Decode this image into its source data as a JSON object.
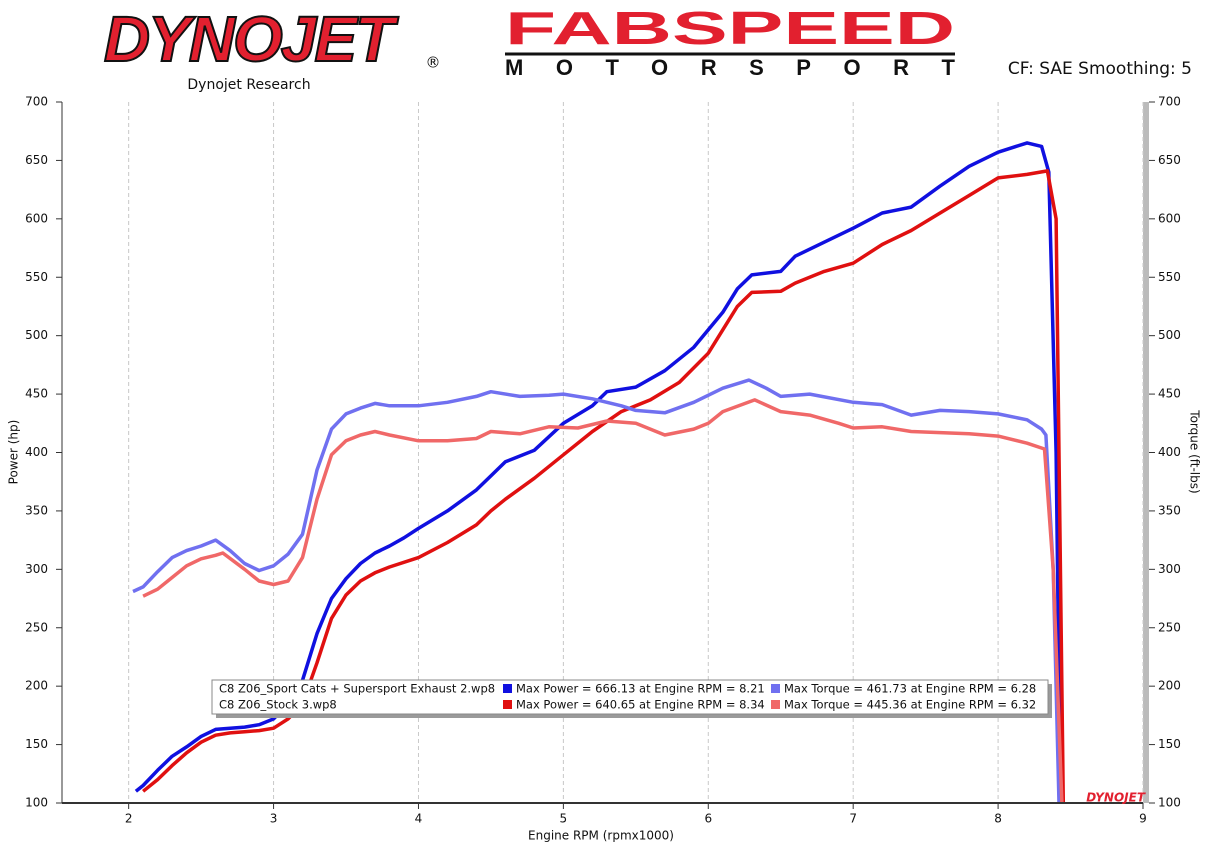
{
  "header": {
    "brand": "DYNOJET",
    "registered": "®",
    "brand_sub": "Dynojet Research",
    "partner": "FABSPEED",
    "partner_sub": "MOTORSPORT",
    "settings": "CF: SAE Smoothing: 5",
    "watermark": "DYNOJET"
  },
  "chart_data": {
    "type": "line",
    "xlabel": "Engine RPM (rpmx1000)",
    "ylabel": "Power (hp)",
    "y2label": "Torque (ft-lbs)",
    "xlim": [
      1.54,
      9
    ],
    "xticks": [
      2,
      3,
      4,
      5,
      6,
      7,
      8,
      9
    ],
    "ylim": [
      100,
      700
    ],
    "yticks": [
      100,
      150,
      200,
      250,
      300,
      350,
      400,
      450,
      500,
      550,
      600,
      650,
      700
    ],
    "y2lim": [
      100,
      700
    ],
    "y2ticks": [
      100,
      150,
      200,
      250,
      300,
      350,
      400,
      450,
      500,
      550,
      600,
      650,
      700
    ],
    "grid": true,
    "series": [
      {
        "color": "#1010e0",
        "x": [
          2.05,
          2.1,
          2.2,
          2.3,
          2.4,
          2.5,
          2.6,
          2.7,
          2.8,
          2.9,
          3.0,
          3.1,
          3.2,
          3.3,
          3.4,
          3.5,
          3.6,
          3.7,
          3.8,
          3.9,
          4.0,
          4.2,
          4.4,
          4.5,
          4.6,
          4.8,
          5.0,
          5.2,
          5.3,
          5.5,
          5.7,
          5.9,
          6.1,
          6.2,
          6.3,
          6.5,
          6.6,
          6.8,
          7.0,
          7.2,
          7.4,
          7.6,
          7.8,
          8.0,
          8.2,
          8.3,
          8.35,
          8.4,
          8.43
        ],
        "values": [
          110,
          115,
          128,
          140,
          148,
          157,
          163,
          164,
          165,
          167,
          172,
          185,
          205,
          245,
          275,
          292,
          305,
          314,
          320,
          327,
          335,
          350,
          368,
          380,
          392,
          402,
          425,
          440,
          452,
          456,
          470,
          490,
          520,
          540,
          552,
          555,
          568,
          580,
          592,
          605,
          610,
          628,
          645,
          657,
          665,
          662,
          640,
          400,
          100
        ]
      },
      {
        "color": "#e01010",
        "x": [
          2.1,
          2.2,
          2.3,
          2.4,
          2.5,
          2.6,
          2.7,
          2.8,
          2.9,
          3.0,
          3.1,
          3.2,
          3.3,
          3.4,
          3.5,
          3.6,
          3.7,
          3.8,
          4.0,
          4.2,
          4.4,
          4.5,
          4.6,
          4.8,
          5.0,
          5.2,
          5.4,
          5.6,
          5.8,
          6.0,
          6.1,
          6.2,
          6.3,
          6.5,
          6.6,
          6.8,
          7.0,
          7.2,
          7.4,
          7.6,
          7.8,
          8.0,
          8.2,
          8.34,
          8.4,
          8.45
        ],
        "values": [
          110,
          120,
          132,
          143,
          152,
          158,
          160,
          161,
          162,
          164,
          172,
          185,
          220,
          258,
          278,
          290,
          297,
          302,
          310,
          323,
          338,
          350,
          360,
          378,
          398,
          418,
          435,
          445,
          460,
          485,
          505,
          525,
          537,
          538,
          545,
          555,
          562,
          578,
          590,
          605,
          620,
          635,
          638,
          641,
          600,
          100
        ]
      },
      {
        "color": "#7070f0",
        "axis": "y2",
        "x": [
          2.03,
          2.1,
          2.2,
          2.3,
          2.4,
          2.5,
          2.6,
          2.7,
          2.8,
          2.9,
          3.0,
          3.1,
          3.2,
          3.3,
          3.4,
          3.5,
          3.6,
          3.7,
          3.8,
          4.0,
          4.2,
          4.4,
          4.5,
          4.7,
          4.9,
          5.0,
          5.2,
          5.4,
          5.5,
          5.7,
          5.9,
          6.1,
          6.28,
          6.4,
          6.5,
          6.7,
          7.0,
          7.2,
          7.4,
          7.6,
          7.8,
          8.0,
          8.2,
          8.3,
          8.33,
          8.38,
          8.42
        ],
        "values": [
          281,
          285,
          298,
          310,
          316,
          320,
          325,
          316,
          305,
          299,
          303,
          313,
          330,
          385,
          420,
          433,
          438,
          442,
          440,
          440,
          443,
          448,
          452,
          448,
          449,
          450,
          446,
          440,
          436,
          434,
          443,
          455,
          462,
          455,
          448,
          450,
          443,
          441,
          432,
          436,
          435,
          433,
          428,
          420,
          415,
          300,
          100
        ]
      },
      {
        "color": "#f06868",
        "axis": "y2",
        "x": [
          2.1,
          2.2,
          2.3,
          2.4,
          2.5,
          2.6,
          2.65,
          2.8,
          2.9,
          3.0,
          3.1,
          3.2,
          3.3,
          3.4,
          3.5,
          3.6,
          3.7,
          3.8,
          4.0,
          4.2,
          4.4,
          4.5,
          4.7,
          4.9,
          5.1,
          5.3,
          5.5,
          5.6,
          5.7,
          5.9,
          6.0,
          6.1,
          6.32,
          6.5,
          6.7,
          6.9,
          7.0,
          7.2,
          7.4,
          7.6,
          7.8,
          8.0,
          8.2,
          8.32,
          8.38,
          8.44
        ],
        "values": [
          277,
          283,
          293,
          303,
          309,
          312,
          314,
          300,
          290,
          287,
          290,
          310,
          360,
          398,
          410,
          415,
          418,
          415,
          410,
          410,
          412,
          418,
          416,
          422,
          421,
          427,
          425,
          420,
          415,
          420,
          425,
          435,
          445,
          435,
          432,
          425,
          421,
          422,
          418,
          417,
          416,
          414,
          408,
          403,
          300,
          100
        ]
      }
    ],
    "legend_rows": [
      {
        "run": "C8 Z06_Sport Cats + Supersport Exhaust 2.wp8",
        "power": "Max Power = 666.13 at Engine RPM = 8.21",
        "torque": "Max Torque = 461.73 at Engine RPM = 6.28"
      },
      {
        "run": "C8 Z06_Stock 3.wp8",
        "power": "Max Power = 640.65 at Engine RPM = 8.34",
        "torque": "Max Torque = 445.36 at Engine RPM = 6.32"
      }
    ]
  }
}
